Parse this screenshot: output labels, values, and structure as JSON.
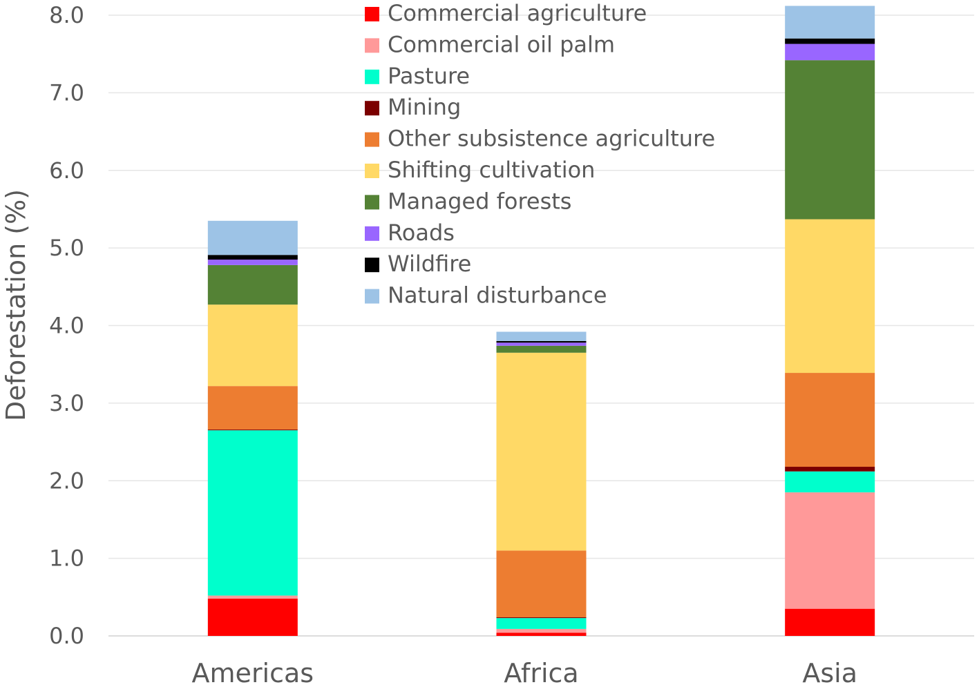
{
  "chart_data": {
    "type": "bar",
    "stacked": true,
    "title": "",
    "xlabel": "",
    "ylabel": "Deforestation (%)",
    "ylim": [
      0,
      8
    ],
    "yticks": [
      "0.0",
      "1.0",
      "2.0",
      "3.0",
      "4.0",
      "5.0",
      "6.0",
      "7.0",
      "8.0"
    ],
    "grid": true,
    "legend_position": "top-center",
    "categories": [
      "Americas",
      "Africa",
      "Asia"
    ],
    "series": [
      {
        "name": "Commercial agriculture",
        "color": "#ff0000",
        "values": [
          0.48,
          0.04,
          0.35
        ]
      },
      {
        "name": "Commercial oil palm",
        "color": "#ff9999",
        "values": [
          0.04,
          0.05,
          1.5
        ]
      },
      {
        "name": "Pasture",
        "color": "#00ffcc",
        "values": [
          2.13,
          0.14,
          0.27
        ]
      },
      {
        "name": "Mining",
        "color": "#7b0000",
        "values": [
          0.01,
          0.01,
          0.06
        ]
      },
      {
        "name": "Other subsistence agriculture",
        "color": "#ed7d31",
        "values": [
          0.56,
          0.86,
          1.21
        ]
      },
      {
        "name": "Shifting cultivation",
        "color": "#ffd966",
        "values": [
          1.05,
          2.55,
          1.98
        ]
      },
      {
        "name": "Managed forests",
        "color": "#548235",
        "values": [
          0.51,
          0.09,
          2.05
        ]
      },
      {
        "name": "Roads",
        "color": "#9966ff",
        "values": [
          0.07,
          0.04,
          0.21
        ]
      },
      {
        "name": "Wildfire",
        "color": "#000000",
        "values": [
          0.06,
          0.02,
          0.07
        ]
      },
      {
        "name": "Natural disturbance",
        "color": "#9dc3e6",
        "values": [
          0.44,
          0.12,
          0.42
        ]
      }
    ]
  }
}
